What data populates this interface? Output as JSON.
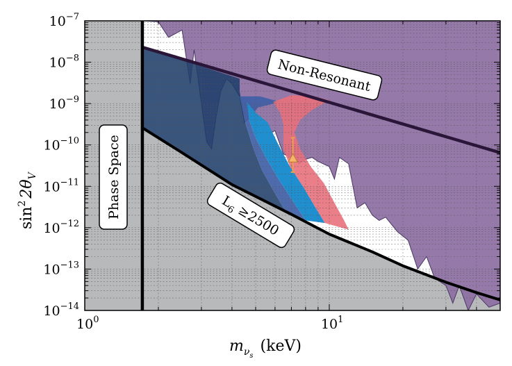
{
  "chart_data": {
    "type": "area",
    "title": "",
    "xlabel_main": "m",
    "xlabel_sub": "ν",
    "xlabel_subsub": "s",
    "xlabel_unit": "(keV)",
    "ylabel_main": "sin",
    "ylabel_exp": "2",
    "ylabel_theta": "2θ",
    "ylabel_sub": "V",
    "x_scale": "log",
    "y_scale": "log",
    "xlim": [
      1,
      50
    ],
    "ylim": [
      1e-14,
      1e-07
    ],
    "grid": true,
    "x_ticks": [
      {
        "value": 1,
        "base": "10",
        "exp": "0"
      },
      {
        "value": 10,
        "base": "10",
        "exp": "1"
      }
    ],
    "y_ticks": [
      {
        "value": 1e-07,
        "base": "10",
        "exp": "−7"
      },
      {
        "value": 1e-08,
        "base": "10",
        "exp": "−8"
      },
      {
        "value": 1e-09,
        "base": "10",
        "exp": "−9"
      },
      {
        "value": 1e-10,
        "base": "10",
        "exp": "−10"
      },
      {
        "value": 1e-11,
        "base": "10",
        "exp": "−11"
      },
      {
        "value": 1e-12,
        "base": "10",
        "exp": "−12"
      },
      {
        "value": 1e-13,
        "base": "10",
        "exp": "−13"
      },
      {
        "value": 1e-14,
        "base": "10",
        "exp": "−14"
      }
    ],
    "annotations": {
      "phase_space": "Phase Space",
      "non_resonant": "Non-Resonant",
      "lepton_prefix": "L",
      "lepton_sub": "6",
      "lepton_suffix": " ≥2500"
    },
    "colors": {
      "phase_space": "#b7b9bb",
      "excluded": "#8c6ea2",
      "navy": "#1f3d6a",
      "blue": "#3f5fa6",
      "cyan": "#1f8fd0",
      "pink": "#e8707c",
      "marker": "#f5b86b",
      "errorbar": "#e8a050"
    },
    "phase_space_boundary_x": 1.72,
    "non_resonant_line": [
      [
        1.72,
        2.3e-08
      ],
      [
        50,
        6.5e-11
      ]
    ],
    "l6_line": [
      [
        1.72,
        2.6e-10
      ],
      [
        2.5,
        6.5e-11
      ],
      [
        4,
        1.1e-11
      ],
      [
        7,
        2.1e-12
      ],
      [
        10,
        7e-13
      ],
      [
        15,
        2.6e-13
      ],
      [
        20,
        1.2e-13
      ],
      [
        30,
        4.8e-14
      ],
      [
        40,
        2.7e-14
      ],
      [
        50,
        1.8e-14
      ]
    ],
    "excluded_region_boundary": [
      [
        1.72,
        1e-07
      ],
      [
        2.0,
        9.5e-08
      ],
      [
        2.2,
        4e-08
      ],
      [
        2.5,
        6e-08
      ],
      [
        2.7,
        3e-09
      ],
      [
        2.8,
        2e-08
      ],
      [
        3.0,
        1e-09
      ],
      [
        3.15,
        1.2e-10
      ],
      [
        3.3,
        8e-11
      ],
      [
        3.45,
        5e-10
      ],
      [
        3.6,
        2e-09
      ],
      [
        3.8,
        4e-09
      ],
      [
        4.0,
        3e-09
      ],
      [
        4.3,
        1.5e-09
      ],
      [
        4.5,
        3.5e-10
      ],
      [
        4.8,
        5e-10
      ],
      [
        5.2,
        3e-10
      ],
      [
        5.5,
        1.8e-10
      ],
      [
        6.0,
        2.2e-10
      ],
      [
        6.5,
        6e-11
      ],
      [
        7.0,
        5e-11
      ],
      [
        7.3,
        5.5e-11
      ],
      [
        7.5,
        3.5e-11
      ],
      [
        8.0,
        4.5e-11
      ],
      [
        8.5,
        5e-11
      ],
      [
        9.0,
        4e-11
      ],
      [
        10.0,
        3e-11
      ],
      [
        10.5,
        1.5e-11
      ],
      [
        11.0,
        5e-11
      ],
      [
        12.0,
        3.5e-11
      ],
      [
        13.0,
        3e-12
      ],
      [
        14.0,
        4e-12
      ],
      [
        15.0,
        2e-12
      ],
      [
        16.0,
        1.5e-12
      ],
      [
        17.0,
        1.8e-12
      ],
      [
        19.0,
        8e-13
      ],
      [
        21.0,
        5e-13
      ],
      [
        23.0,
        1e-13
      ],
      [
        25.0,
        2e-13
      ],
      [
        27.0,
        6e-14
      ],
      [
        30.0,
        4e-14
      ],
      [
        32.0,
        1.5e-14
      ],
      [
        34.0,
        4e-14
      ],
      [
        37.0,
        1e-14
      ],
      [
        40.0,
        2.5e-14
      ],
      [
        45.0,
        1.2e-14
      ],
      [
        50,
        1.5e-14
      ]
    ],
    "navy_region_right": [
      [
        4.3,
        2e-09
      ],
      [
        4.5,
        4e-10
      ],
      [
        4.9,
        8e-11
      ],
      [
        5.3,
        2.5e-11
      ],
      [
        5.9,
        8e-12
      ],
      [
        6.5,
        3e-12
      ],
      [
        7.0,
        2e-12
      ]
    ],
    "blue_region": [
      [
        4.3,
        1.5e-09
      ],
      [
        5.2,
        1.5e-09
      ],
      [
        6.3,
        1.1e-09
      ],
      [
        5.1,
        8e-10
      ],
      [
        4.7,
        4e-10
      ],
      [
        5.0,
        1.5e-10
      ],
      [
        5.5,
        5e-11
      ],
      [
        6.2,
        1.5e-11
      ],
      [
        7.0,
        5e-12
      ],
      [
        8.0,
        1.5e-12
      ],
      [
        7.0,
        2e-12
      ],
      [
        6.5,
        3e-12
      ],
      [
        5.9,
        8e-12
      ],
      [
        5.3,
        2.5e-11
      ],
      [
        4.9,
        8e-11
      ],
      [
        4.5,
        4e-10
      ]
    ],
    "cyan_region": [
      [
        4.6,
        1.1e-09
      ],
      [
        5.0,
        6e-10
      ],
      [
        5.6,
        3.5e-10
      ],
      [
        6.2,
        1e-10
      ],
      [
        6.9,
        3e-11
      ],
      [
        7.8,
        1e-11
      ],
      [
        8.8,
        3e-12
      ],
      [
        9.6,
        1.3e-12
      ],
      [
        8.0,
        1.5e-12
      ],
      [
        7.0,
        5e-12
      ],
      [
        6.2,
        1.5e-11
      ],
      [
        5.5,
        5e-11
      ],
      [
        5.0,
        1.5e-10
      ],
      [
        4.7,
        4e-10
      ]
    ],
    "pink_region": [
      [
        5.9,
        1.1e-09
      ],
      [
        7.0,
        1.6e-09
      ],
      [
        8.7,
        1.5e-09
      ],
      [
        10.0,
        1.2e-09
      ],
      [
        8.5,
        7e-10
      ],
      [
        7.6,
        4e-10
      ],
      [
        7.2,
        2e-10
      ],
      [
        7.6,
        8e-11
      ],
      [
        8.4,
        3e-11
      ],
      [
        9.5,
        1.2e-11
      ],
      [
        10.5,
        4e-12
      ],
      [
        11.5,
        1.5e-12
      ],
      [
        12.0,
        9e-13
      ],
      [
        9.6,
        1.3e-12
      ],
      [
        8.8,
        3e-12
      ],
      [
        7.8,
        1e-11
      ],
      [
        6.9,
        3e-11
      ],
      [
        6.5,
        8e-11
      ],
      [
        6.5,
        3e-10
      ],
      [
        6.3,
        6e-10
      ]
    ],
    "data_point": {
      "x": 7.1,
      "y": 4.7e-11,
      "y_low": 2.2e-11,
      "y_high": 1.5e-10
    }
  }
}
